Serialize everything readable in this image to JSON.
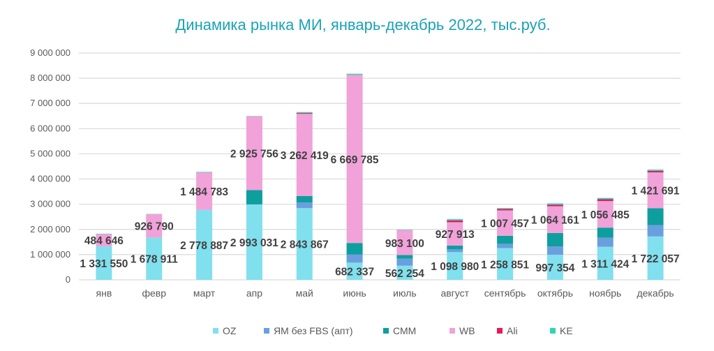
{
  "chart_data": {
    "type": "bar",
    "stacked": true,
    "title": "Динамика рынка МИ, январь-декабрь 2022, тыс.руб.",
    "xlabel": "",
    "ylabel": "",
    "ylim": [
      0,
      9000000
    ],
    "yticks": [
      0,
      1000000,
      2000000,
      3000000,
      4000000,
      5000000,
      6000000,
      7000000,
      8000000,
      9000000
    ],
    "ytick_labels": [
      "0",
      "1 000 000",
      "2 000 000",
      "3 000 000",
      "4 000 000",
      "5 000 000",
      "6 000 000",
      "7 000 000",
      "8 000 000",
      "9 000 000"
    ],
    "grid": true,
    "legend_position": "bottom",
    "categories": [
      "янв",
      "февр",
      "март",
      "апр",
      "май",
      "июнь",
      "июль",
      "август",
      "сентябрь",
      "октябрь",
      "ноябрь",
      "декабрь"
    ],
    "series": [
      {
        "name": "OZ",
        "color": "#80e0ee",
        "labeled": true,
        "values": [
          1331550,
          1678911,
          2778887,
          2993031,
          2843867,
          682337,
          562254,
          1098980,
          1258851,
          997354,
          1311424,
          1722057
        ],
        "labels": [
          "1 331 550",
          "1 678 911",
          "2 778 887",
          "2 993 031",
          "2 843 867",
          "682 337",
          "562 254",
          "1 098 980",
          "1 258 851",
          "997 354",
          "1 311 424",
          "1 722 057"
        ]
      },
      {
        "name": "ЯМ без FBS (апт)",
        "color": "#6a9fde",
        "labeled": false,
        "values": [
          0,
          0,
          0,
          0,
          230000,
          320000,
          280000,
          110000,
          170000,
          330000,
          360000,
          450000
        ]
      },
      {
        "name": "СММ",
        "color": "#0e9e9e",
        "labeled": false,
        "values": [
          0,
          0,
          0,
          565000,
          250000,
          460000,
          140000,
          150000,
          320000,
          530000,
          400000,
          670000
        ]
      },
      {
        "name": "WB",
        "color": "#f0a2d9",
        "labeled": true,
        "values": [
          484646,
          926790,
          1484783,
          2925756,
          3262419,
          6669785,
          983100,
          927913,
          1007457,
          1064161,
          1056485,
          1421691
        ],
        "labels": [
          "484 646",
          "926 790",
          "1 484 783",
          "2 925 756",
          "3 262 419",
          "6 669 785",
          "983 100",
          "927 913",
          "1 007 457",
          "1 064 161",
          "1 056 485",
          "1 421 691"
        ]
      },
      {
        "name": "Ali",
        "color": "#e8185c",
        "labeled": false,
        "values": [
          0,
          0,
          0,
          5000,
          30000,
          5000,
          5000,
          70000,
          60000,
          60000,
          70000,
          60000
        ]
      },
      {
        "name": "KE",
        "color": "#2fd6b0",
        "labeled": false,
        "values": [
          15000,
          10000,
          20000,
          10000,
          40000,
          40000,
          15000,
          50000,
          30000,
          50000,
          50000,
          50000
        ]
      }
    ]
  }
}
